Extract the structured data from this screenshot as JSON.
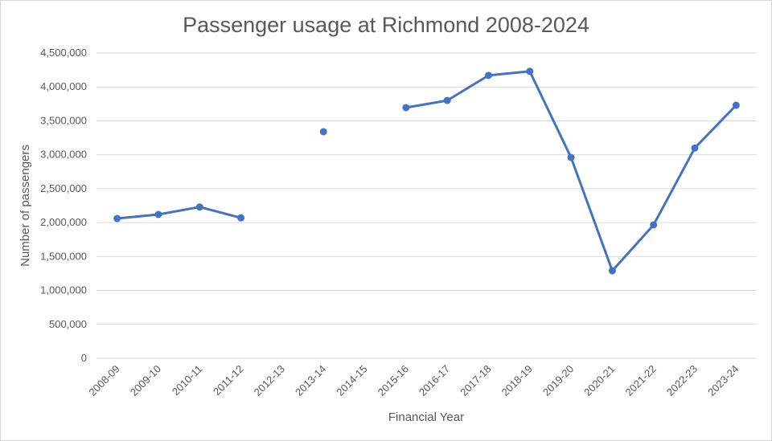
{
  "chart_data": {
    "type": "line",
    "title": "Passenger usage at Richmond 2008-2024",
    "xlabel": "Financial Year",
    "ylabel": "Number of passengers",
    "categories": [
      "2008-09",
      "2009-10",
      "2010-11",
      "2011-12",
      "2012-13",
      "2013-14",
      "2014-15",
      "2015-16",
      "2016-17",
      "2017-18",
      "2018-19",
      "2019-20",
      "2020-21",
      "2021-22",
      "2022-23",
      "2023-24"
    ],
    "series": [
      {
        "values": [
          2060000,
          2120000,
          2230000,
          2070000,
          null,
          3340000,
          null,
          3695000,
          3800000,
          4170000,
          4230000,
          2960000,
          1290000,
          1966000,
          3100000,
          3730000
        ]
      }
    ],
    "yticks": [
      "0",
      "500,000",
      "1,000,000",
      "1,500,000",
      "2,000,000",
      "2,500,000",
      "3,000,000",
      "3,500,000",
      "4,000,000",
      "4,500,000"
    ],
    "ylim": [
      0,
      4500000
    ],
    "grid": true,
    "legend": "none",
    "colors": {
      "series": "#4472c4",
      "grid": "#d9d9d9",
      "text": "#595959"
    }
  }
}
